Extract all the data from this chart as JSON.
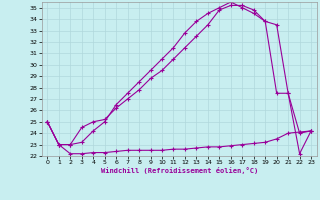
{
  "xlabel": "Windchill (Refroidissement éolien,°C)",
  "background_color": "#c8eef0",
  "grid_color": "#b0d8dc",
  "line_color": "#990099",
  "xlim": [
    -0.5,
    23.5
  ],
  "ylim": [
    22,
    35.5
  ],
  "xticks": [
    0,
    1,
    2,
    3,
    4,
    5,
    6,
    7,
    8,
    9,
    10,
    11,
    12,
    13,
    14,
    15,
    16,
    17,
    18,
    19,
    20,
    21,
    22,
    23
  ],
  "yticks": [
    22,
    23,
    24,
    25,
    26,
    27,
    28,
    29,
    30,
    31,
    32,
    33,
    34,
    35
  ],
  "line1_x": [
    0,
    1,
    2,
    3,
    4,
    5,
    6,
    7,
    8,
    9,
    10,
    11,
    12,
    13,
    14,
    15,
    16,
    17,
    18,
    19,
    20,
    21,
    22,
    23
  ],
  "line1_y": [
    25.0,
    23.0,
    22.2,
    22.2,
    22.3,
    22.3,
    22.4,
    22.5,
    22.5,
    22.5,
    22.5,
    22.6,
    22.6,
    22.7,
    22.8,
    22.8,
    22.9,
    23.0,
    23.1,
    23.2,
    23.5,
    24.0,
    24.1,
    24.2
  ],
  "line2_x": [
    0,
    1,
    2,
    3,
    4,
    5,
    6,
    7,
    8,
    9,
    10,
    11,
    12,
    13,
    14,
    15,
    16,
    17,
    18,
    19,
    20,
    21,
    22,
    23
  ],
  "line2_y": [
    25.0,
    23.0,
    23.0,
    24.5,
    25.0,
    25.2,
    26.2,
    27.0,
    27.8,
    28.8,
    29.5,
    30.5,
    31.5,
    32.5,
    33.5,
    34.8,
    35.2,
    35.2,
    34.8,
    33.8,
    27.5,
    27.5,
    24.0,
    24.2
  ],
  "line3_x": [
    0,
    1,
    2,
    3,
    4,
    5,
    6,
    7,
    8,
    9,
    10,
    11,
    12,
    13,
    14,
    15,
    16,
    17,
    18,
    19,
    20,
    21,
    22,
    23
  ],
  "line3_y": [
    25.0,
    23.0,
    23.0,
    23.2,
    24.2,
    25.0,
    26.5,
    27.5,
    28.5,
    29.5,
    30.5,
    31.5,
    32.8,
    33.8,
    34.5,
    35.0,
    35.5,
    35.0,
    34.5,
    33.8,
    33.5,
    27.5,
    22.2,
    24.2
  ]
}
